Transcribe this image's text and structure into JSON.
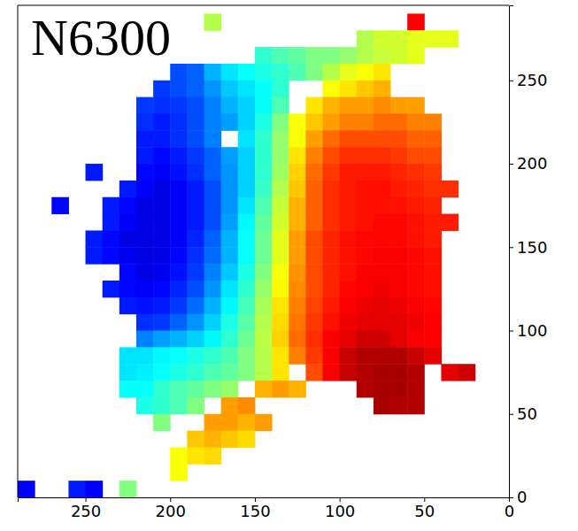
{
  "chart_data": {
    "type": "heatmap",
    "title": "N6300",
    "x": [
      285,
      275,
      265,
      255,
      245,
      235,
      225,
      215,
      205,
      195,
      185,
      175,
      165,
      155,
      145,
      135,
      125,
      115,
      105,
      95,
      85,
      75,
      65,
      55,
      45,
      35,
      25,
      15,
      5
    ],
    "y": [
      285,
      275,
      265,
      255,
      245,
      235,
      225,
      215,
      205,
      195,
      185,
      175,
      165,
      155,
      145,
      135,
      125,
      115,
      105,
      95,
      85,
      75,
      65,
      55,
      45,
      35,
      25,
      15,
      5
    ],
    "z": [
      [
        null,
        null,
        null,
        null,
        null,
        null,
        null,
        null,
        null,
        null,
        null,
        0.55,
        null,
        null,
        null,
        null,
        null,
        null,
        null,
        null,
        null,
        null,
        null,
        0.88,
        null,
        null,
        null,
        null,
        null
      ],
      [
        null,
        null,
        null,
        null,
        null,
        null,
        null,
        null,
        null,
        null,
        null,
        null,
        null,
        null,
        null,
        null,
        null,
        null,
        null,
        null,
        0.55,
        0.58,
        0.58,
        0.6,
        0.6,
        0.6,
        null,
        null,
        null
      ],
      [
        null,
        null,
        null,
        null,
        null,
        null,
        null,
        null,
        null,
        null,
        null,
        null,
        null,
        null,
        0.42,
        0.45,
        0.47,
        0.5,
        0.5,
        0.52,
        0.55,
        0.57,
        0.58,
        0.6,
        null,
        null,
        null,
        null,
        null
      ],
      [
        null,
        null,
        null,
        null,
        null,
        null,
        null,
        null,
        null,
        0.2,
        0.22,
        0.3,
        0.35,
        0.38,
        0.4,
        0.42,
        0.45,
        0.5,
        0.55,
        0.6,
        0.62,
        0.65,
        null,
        null,
        null,
        null,
        null,
        null,
        null
      ],
      [
        null,
        null,
        null,
        null,
        null,
        null,
        null,
        null,
        0.18,
        0.2,
        0.22,
        0.27,
        0.32,
        0.35,
        0.38,
        0.42,
        null,
        null,
        0.62,
        0.65,
        0.68,
        0.7,
        null,
        null,
        null,
        null,
        null,
        null,
        null
      ],
      [
        null,
        null,
        null,
        null,
        null,
        null,
        null,
        0.18,
        0.17,
        0.18,
        0.2,
        0.25,
        0.3,
        0.33,
        0.38,
        0.45,
        null,
        0.65,
        0.7,
        0.72,
        0.72,
        0.74,
        0.72,
        0.72,
        null,
        null,
        null,
        null,
        null
      ],
      [
        null,
        null,
        null,
        null,
        null,
        null,
        null,
        0.17,
        0.15,
        0.17,
        0.2,
        0.25,
        0.28,
        0.33,
        0.4,
        0.5,
        0.62,
        0.68,
        0.72,
        0.75,
        0.75,
        0.77,
        0.77,
        0.75,
        0.75,
        null,
        null,
        null,
        null
      ],
      [
        null,
        null,
        null,
        null,
        null,
        null,
        null,
        0.15,
        0.15,
        0.17,
        0.2,
        0.25,
        null,
        0.35,
        0.42,
        0.52,
        0.62,
        0.72,
        0.77,
        0.8,
        0.8,
        0.8,
        0.8,
        0.78,
        0.78,
        null,
        null,
        null,
        null
      ],
      [
        null,
        null,
        null,
        null,
        null,
        null,
        null,
        0.15,
        0.13,
        0.15,
        0.18,
        0.22,
        0.28,
        0.33,
        0.42,
        0.52,
        0.65,
        0.75,
        0.8,
        0.83,
        0.83,
        0.83,
        0.82,
        0.8,
        0.8,
        null,
        null,
        null,
        null
      ],
      [
        null,
        null,
        null,
        null,
        0.15,
        null,
        null,
        0.13,
        0.12,
        0.14,
        0.17,
        0.22,
        0.27,
        0.33,
        0.42,
        0.53,
        0.67,
        0.77,
        0.82,
        0.85,
        0.85,
        0.85,
        0.84,
        0.83,
        0.82,
        null,
        null,
        null,
        null
      ],
      [
        null,
        null,
        null,
        null,
        null,
        null,
        0.15,
        0.12,
        0.1,
        0.12,
        0.15,
        0.2,
        0.27,
        0.33,
        0.43,
        0.55,
        0.68,
        0.78,
        0.83,
        0.85,
        0.86,
        0.86,
        0.85,
        0.84,
        0.83,
        0.83,
        null,
        null,
        null
      ],
      [
        null,
        null,
        0.13,
        null,
        null,
        0.15,
        0.13,
        0.1,
        0.1,
        0.12,
        0.15,
        0.2,
        0.27,
        0.35,
        0.45,
        0.57,
        0.7,
        0.78,
        0.83,
        0.85,
        0.86,
        0.86,
        0.86,
        0.85,
        0.84,
        null,
        null,
        null,
        null
      ],
      [
        null,
        null,
        null,
        null,
        null,
        0.15,
        0.12,
        0.1,
        0.1,
        0.12,
        0.15,
        0.2,
        0.28,
        0.37,
        0.47,
        0.58,
        0.7,
        0.78,
        0.83,
        0.85,
        0.86,
        0.87,
        0.87,
        0.86,
        0.85,
        0.85,
        null,
        null,
        null
      ],
      [
        null,
        null,
        null,
        null,
        0.15,
        0.13,
        0.1,
        0.1,
        0.1,
        0.12,
        0.16,
        0.22,
        0.3,
        0.38,
        0.48,
        0.6,
        0.72,
        0.8,
        0.84,
        0.86,
        0.87,
        0.87,
        0.87,
        0.86,
        0.85,
        null,
        null,
        null,
        null
      ],
      [
        null,
        null,
        null,
        null,
        0.15,
        0.13,
        0.11,
        0.1,
        0.1,
        0.13,
        0.17,
        0.23,
        0.3,
        0.38,
        0.48,
        0.6,
        0.72,
        0.8,
        0.84,
        0.86,
        0.87,
        0.88,
        0.88,
        0.87,
        0.86,
        null,
        null,
        null,
        null
      ],
      [
        null,
        null,
        null,
        null,
        null,
        null,
        0.13,
        0.1,
        0.11,
        0.14,
        0.18,
        0.25,
        0.32,
        0.4,
        0.5,
        0.62,
        0.73,
        0.8,
        0.84,
        0.86,
        0.88,
        0.88,
        0.88,
        0.87,
        0.86,
        null,
        null,
        null,
        null
      ],
      [
        null,
        null,
        null,
        null,
        null,
        0.15,
        0.13,
        0.12,
        0.13,
        0.16,
        0.2,
        0.27,
        0.35,
        0.42,
        0.52,
        0.63,
        0.74,
        0.8,
        0.84,
        0.87,
        0.88,
        0.89,
        0.88,
        0.87,
        0.86,
        null,
        null,
        null,
        null
      ],
      [
        null,
        null,
        null,
        null,
        null,
        null,
        0.15,
        0.14,
        0.15,
        0.18,
        0.23,
        0.3,
        0.37,
        0.44,
        0.54,
        0.65,
        0.75,
        0.81,
        0.85,
        0.88,
        0.89,
        0.9,
        0.89,
        0.88,
        0.87,
        null,
        null,
        null,
        null
      ],
      [
        null,
        null,
        null,
        null,
        null,
        null,
        null,
        0.17,
        0.18,
        0.22,
        0.27,
        0.33,
        0.4,
        0.46,
        0.55,
        0.66,
        0.76,
        0.82,
        0.86,
        0.89,
        0.9,
        0.9,
        0.9,
        0.89,
        0.88,
        null,
        null,
        null,
        null
      ],
      [
        null,
        null,
        null,
        null,
        null,
        null,
        null,
        0.25,
        0.28,
        0.3,
        0.33,
        0.37,
        0.42,
        0.48,
        0.56,
        0.67,
        0.77,
        0.83,
        0.88,
        0.9,
        0.92,
        0.92,
        0.9,
        0.88,
        0.88,
        null,
        null,
        null,
        null
      ],
      [
        null,
        null,
        null,
        null,
        null,
        null,
        0.35,
        0.35,
        0.37,
        0.38,
        0.4,
        0.42,
        0.45,
        0.5,
        0.55,
        0.65,
        0.75,
        0.82,
        0.88,
        0.93,
        0.95,
        0.95,
        0.95,
        0.93,
        0.9,
        null,
        null,
        null,
        null
      ],
      [
        null,
        null,
        null,
        null,
        null,
        null,
        0.35,
        0.36,
        0.38,
        0.4,
        0.42,
        0.45,
        0.47,
        0.5,
        0.55,
        0.65,
        null,
        0.8,
        0.88,
        0.93,
        0.95,
        0.96,
        0.96,
        0.95,
        null,
        0.9,
        0.92,
        null,
        null
      ],
      [
        null,
        null,
        null,
        null,
        null,
        null,
        0.38,
        0.38,
        0.42,
        0.45,
        0.47,
        0.5,
        0.52,
        null,
        0.7,
        0.72,
        0.7,
        null,
        null,
        null,
        0.95,
        0.96,
        0.96,
        0.95,
        null,
        null,
        null,
        null,
        null
      ],
      [
        null,
        null,
        null,
        null,
        null,
        null,
        null,
        0.4,
        0.42,
        0.45,
        0.5,
        null,
        0.72,
        0.74,
        null,
        null,
        null,
        null,
        null,
        null,
        null,
        0.96,
        0.95,
        0.95,
        null,
        null,
        null,
        null,
        null
      ],
      [
        null,
        null,
        null,
        null,
        null,
        null,
        null,
        null,
        0.5,
        null,
        null,
        0.72,
        0.72,
        0.7,
        0.72,
        null,
        null,
        null,
        null,
        null,
        null,
        null,
        null,
        null,
        null,
        null,
        null,
        null,
        null
      ],
      [
        null,
        null,
        null,
        null,
        null,
        null,
        null,
        null,
        null,
        null,
        0.68,
        0.7,
        0.68,
        0.66,
        null,
        null,
        null,
        null,
        null,
        null,
        null,
        null,
        null,
        null,
        null,
        null,
        null,
        null,
        null
      ],
      [
        null,
        null,
        null,
        null,
        null,
        null,
        null,
        null,
        null,
        0.62,
        0.65,
        0.66,
        null,
        null,
        null,
        null,
        null,
        null,
        null,
        null,
        null,
        null,
        null,
        null,
        null,
        null,
        null,
        null,
        null
      ],
      [
        null,
        null,
        null,
        null,
        null,
        null,
        null,
        null,
        null,
        0.62,
        null,
        null,
        null,
        null,
        null,
        null,
        null,
        null,
        null,
        null,
        null,
        null,
        null,
        null,
        null,
        null,
        null,
        null,
        null
      ],
      [
        0.12,
        null,
        null,
        0.15,
        0.12,
        null,
        0.5,
        null,
        null,
        null,
        null,
        null,
        null,
        null,
        null,
        null,
        null,
        null,
        null,
        null,
        null,
        null,
        null,
        null,
        null,
        null,
        null,
        null,
        null
      ]
    ],
    "clim": [
      0,
      1
    ],
    "xlim": [
      290,
      0
    ],
    "ylim": [
      0,
      295
    ],
    "xticks": [
      250,
      200,
      150,
      100,
      50,
      0
    ],
    "yticks": [
      0,
      50,
      100,
      150,
      200,
      250
    ]
  }
}
